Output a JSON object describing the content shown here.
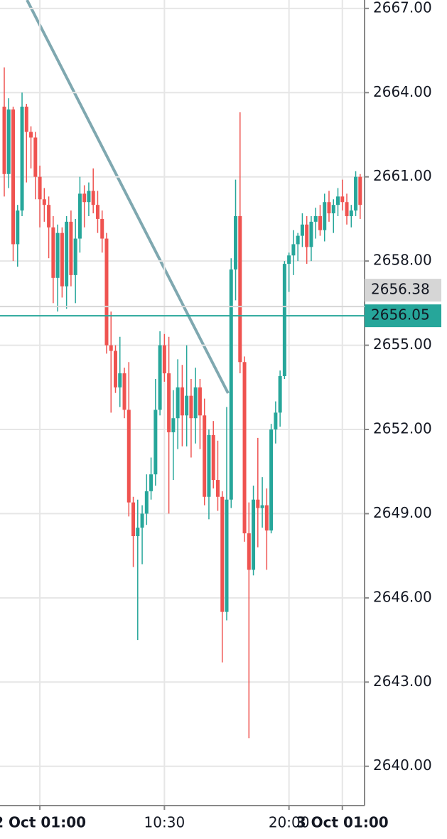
{
  "chart_data": {
    "type": "candlestick",
    "categories": [
      null,
      null,
      null,
      null,
      null,
      null,
      null,
      null,
      "2 Oct 01:00",
      null,
      null,
      null,
      null,
      null,
      null,
      null,
      null,
      null,
      null,
      null,
      null,
      null,
      null,
      null,
      null,
      null,
      null,
      null,
      null,
      null,
      null,
      null,
      null,
      null,
      null,
      null,
      "10:30",
      null,
      null,
      null,
      null,
      null,
      null,
      null,
      null,
      null,
      null,
      null,
      null,
      null,
      null,
      null,
      null,
      null,
      null,
      null,
      null,
      null,
      null,
      null,
      null,
      null,
      null,
      null,
      "20:00",
      null,
      null,
      null,
      null,
      null,
      null,
      null,
      null,
      null,
      null,
      null,
      "3 Oct 01:00",
      null,
      null,
      null,
      null
    ],
    "open": [
      2663.5,
      2661.1,
      2663.4,
      2658.6,
      2659.8,
      2663.5,
      2662.6,
      2662.4,
      2661.0,
      2660.2,
      2660.0,
      2659.2,
      2657.4,
      2659.0,
      2657.1,
      2659.4,
      2657.5,
      2658.8,
      2660.4,
      2660.1,
      2660.5,
      2660.0,
      2659.5,
      2658.8,
      2655.0,
      2654.8,
      2653.5,
      2654.0,
      2652.7,
      2649.4,
      2648.2,
      2648.5,
      2649.0,
      2649.8,
      2650.4,
      2652.7,
      2655.0,
      2654.0,
      2651.9,
      2652.4,
      2653.5,
      2652.5,
      2653.2,
      2652.4,
      2653.5,
      2652.5,
      2649.6,
      2651.8,
      2650.2,
      2649.6,
      2645.5,
      2649.5,
      2657.7,
      2659.6,
      2654.4,
      2648.3,
      2647.0,
      2649.5,
      2649.2,
      2649.3,
      2648.4,
      2652.0,
      2652.6,
      2653.9,
      2657.9,
      2658.2,
      2658.6,
      2658.9,
      2659.3,
      2658.5,
      2659.4,
      2659.6,
      2659.1,
      2660.1,
      2659.7,
      2660.0,
      2660.3,
      2660.1,
      2659.6,
      2659.8,
      2661.0
    ],
    "high": [
      2664.9,
      2663.8,
      2663.5,
      2660.0,
      2664.0,
      2663.6,
      2662.8,
      2662.6,
      2661.4,
      2660.6,
      2660.3,
      2659.6,
      2659.3,
      2659.2,
      2659.6,
      2659.8,
      2659.5,
      2661.0,
      2660.7,
      2660.8,
      2661.3,
      2660.5,
      2659.8,
      2659.0,
      2656.2,
      2655.0,
      2655.3,
      2654.2,
      2654.4,
      2649.6,
      2649.5,
      2649.3,
      2650.4,
      2651.0,
      2653.8,
      2655.5,
      2655.4,
      2655.3,
      2653.4,
      2654.5,
      2654.3,
      2655.0,
      2653.8,
      2654.2,
      2653.8,
      2653.1,
      2652.0,
      2652.3,
      2651.6,
      2649.8,
      2652.8,
      2658.1,
      2660.9,
      2663.3,
      2654.6,
      2649.4,
      2650.0,
      2651.7,
      2650.3,
      2649.9,
      2652.2,
      2653.0,
      2654.1,
      2658.0,
      2658.3,
      2659.1,
      2659.0,
      2659.7,
      2659.6,
      2659.6,
      2659.9,
      2660.0,
      2660.4,
      2660.5,
      2660.2,
      2660.6,
      2660.9,
      2660.4,
      2660.0,
      2661.2,
      2661.1
    ],
    "low": [
      2660.3,
      2660.6,
      2658.0,
      2657.8,
      2659.6,
      2660.8,
      2661.3,
      2660.2,
      2659.2,
      2659.4,
      2658.1,
      2656.5,
      2656.2,
      2656.7,
      2656.3,
      2657.1,
      2656.5,
      2658.3,
      2659.2,
      2659.6,
      2659.7,
      2659.0,
      2658.3,
      2654.7,
      2652.6,
      2653.3,
      2652.8,
      2652.4,
      2648.9,
      2647.1,
      2644.5,
      2647.2,
      2648.6,
      2649.5,
      2650.0,
      2652.5,
      2653.7,
      2649.0,
      2650.2,
      2651.3,
      2651.4,
      2651.4,
      2651.0,
      2651.5,
      2651.3,
      2649.3,
      2648.8,
      2649.9,
      2649.1,
      2643.7,
      2645.2,
      2649.2,
      2656.6,
      2654.0,
      2648.0,
      2641.0,
      2646.8,
      2647.8,
      2648.5,
      2647.0,
      2648.3,
      2651.5,
      2652.1,
      2653.8,
      2656.9,
      2657.5,
      2658.0,
      2658.5,
      2657.9,
      2658.0,
      2658.8,
      2658.9,
      2658.7,
      2659.4,
      2659.0,
      2659.6,
      2659.8,
      2659.3,
      2659.2,
      2659.6,
      2659.5
    ],
    "close": [
      2661.1,
      2663.4,
      2658.6,
      2659.8,
      2663.5,
      2662.6,
      2662.4,
      2661.0,
      2660.2,
      2660.0,
      2659.2,
      2657.4,
      2659.0,
      2657.1,
      2659.4,
      2657.5,
      2658.8,
      2660.4,
      2660.1,
      2660.5,
      2660.0,
      2659.5,
      2658.8,
      2655.0,
      2654.8,
      2653.5,
      2654.0,
      2652.7,
      2649.4,
      2648.2,
      2648.5,
      2649.0,
      2649.8,
      2650.4,
      2652.7,
      2655.0,
      2654.0,
      2651.9,
      2652.4,
      2653.5,
      2652.5,
      2653.2,
      2652.4,
      2653.5,
      2652.5,
      2649.6,
      2651.8,
      2650.2,
      2649.6,
      2645.5,
      2649.5,
      2657.7,
      2659.6,
      2654.4,
      2648.3,
      2647.0,
      2649.5,
      2649.2,
      2649.3,
      2648.4,
      2652.0,
      2652.6,
      2653.9,
      2657.9,
      2658.2,
      2658.6,
      2658.9,
      2659.3,
      2658.5,
      2659.4,
      2659.6,
      2659.1,
      2660.1,
      2659.7,
      2660.0,
      2660.3,
      2660.1,
      2659.6,
      2659.8,
      2661.0,
      2660.0
    ],
    "up_color": "#26a69a",
    "down_color": "#ef5350",
    "ylim": [
      2638.6,
      2667.3
    ],
    "yticks": [
      {
        "value": 2640,
        "label": "2640.00"
      },
      {
        "value": 2643,
        "label": "2643.00"
      },
      {
        "value": 2646,
        "label": "2646.00"
      },
      {
        "value": 2649,
        "label": "2649.00"
      },
      {
        "value": 2652,
        "label": "2652.00"
      },
      {
        "value": 2655,
        "label": "2655.00"
      },
      {
        "value": 2658,
        "label": "2658.00"
      },
      {
        "value": 2661,
        "label": "2661.00"
      },
      {
        "value": 2664,
        "label": "2664.00"
      },
      {
        "value": 2667,
        "label": "2667.00"
      }
    ],
    "grid": true,
    "price_lines": [
      {
        "value": 2656.38,
        "color": "#d6d6d6"
      },
      {
        "value": 2656.05,
        "color": "#26a69a"
      }
    ]
  }
}
